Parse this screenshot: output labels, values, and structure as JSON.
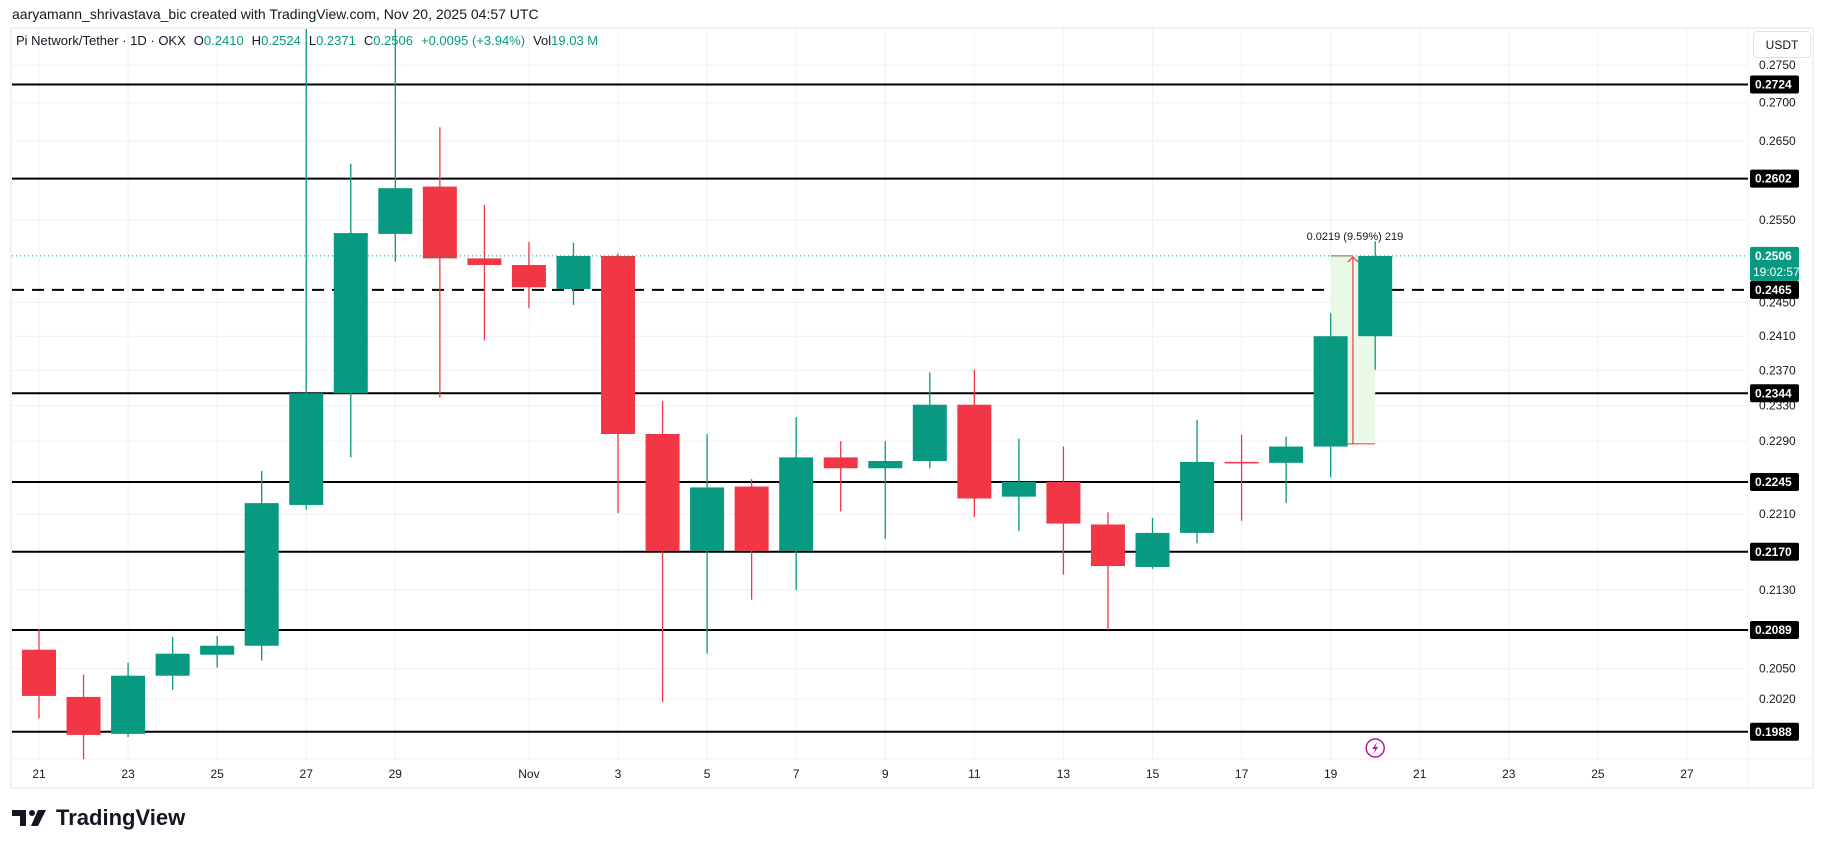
{
  "header": {
    "attribution": "aaryamann_shrivastava_bic created with TradingView.com, Nov 20, 2025 04:57 UTC"
  },
  "legend": {
    "symbol": "Pi Network/Tether · 1D · OKX",
    "open_label": "O",
    "open": "0.2410",
    "high_label": "H",
    "high": "0.2524",
    "low_label": "L",
    "low": "0.2371",
    "close_label": "C",
    "close": "0.2506",
    "change": "+0.0095 (+3.94%)",
    "vol_label": "Vol",
    "vol": "19.03 M"
  },
  "currency_button": "USDT",
  "logo_text": "TradingView",
  "colors": {
    "up": "#089981",
    "down": "#F23645",
    "level": "#000000",
    "measure_fill": "#e9f9e6",
    "measure_line": "#F23645",
    "grid": "#f0f1f3"
  },
  "chart_data": {
    "type": "candlestick",
    "title": "Pi Network/Tether · 1D · OKX",
    "y_scale": "log",
    "ylim": [
      0.1935,
      0.2845
    ],
    "xlim": [
      "2025-10-20",
      "2025-11-28"
    ],
    "grid": true,
    "y_ticks": [
      "0.2750",
      "0.2700",
      "0.2650",
      "0.2550",
      "0.2450",
      "0.2410",
      "0.2370",
      "0.2330",
      "0.2290",
      "0.2210",
      "0.2130",
      "0.2050",
      "0.2020"
    ],
    "x_ticks": [
      {
        "date": "2025-10-21",
        "label": "21"
      },
      {
        "date": "2025-10-23",
        "label": "23"
      },
      {
        "date": "2025-10-25",
        "label": "25"
      },
      {
        "date": "2025-10-27",
        "label": "27"
      },
      {
        "date": "2025-10-29",
        "label": "29"
      },
      {
        "date": "2025-11-01",
        "label": "Nov"
      },
      {
        "date": "2025-11-03",
        "label": "3"
      },
      {
        "date": "2025-11-05",
        "label": "5"
      },
      {
        "date": "2025-11-07",
        "label": "7"
      },
      {
        "date": "2025-11-09",
        "label": "9"
      },
      {
        "date": "2025-11-11",
        "label": "11"
      },
      {
        "date": "2025-11-13",
        "label": "13"
      },
      {
        "date": "2025-11-15",
        "label": "15"
      },
      {
        "date": "2025-11-17",
        "label": "17"
      },
      {
        "date": "2025-11-19",
        "label": "19"
      },
      {
        "date": "2025-11-21",
        "label": "21"
      },
      {
        "date": "2025-11-23",
        "label": "23"
      },
      {
        "date": "2025-11-25",
        "label": "25"
      },
      {
        "date": "2025-11-27",
        "label": "27"
      }
    ],
    "candles": [
      {
        "date": "2025-10-21",
        "o": 0.2069,
        "h": 0.209,
        "l": 0.2001,
        "c": 0.2023
      },
      {
        "date": "2025-10-22",
        "o": 0.2022,
        "h": 0.2044,
        "l": 0.1959,
        "c": 0.1985
      },
      {
        "date": "2025-10-23",
        "o": 0.1986,
        "h": 0.2056,
        "l": 0.1983,
        "c": 0.2043
      },
      {
        "date": "2025-10-24",
        "o": 0.2043,
        "h": 0.2082,
        "l": 0.2029,
        "c": 0.2065
      },
      {
        "date": "2025-10-25",
        "o": 0.2064,
        "h": 0.2083,
        "l": 0.2051,
        "c": 0.2073
      },
      {
        "date": "2025-10-26",
        "o": 0.2073,
        "h": 0.2257,
        "l": 0.2058,
        "c": 0.2222
      },
      {
        "date": "2025-10-27",
        "o": 0.222,
        "h": 0.285,
        "l": 0.2215,
        "c": 0.2344
      },
      {
        "date": "2025-10-28",
        "o": 0.2344,
        "h": 0.2621,
        "l": 0.2272,
        "c": 0.2534
      },
      {
        "date": "2025-10-29",
        "o": 0.2533,
        "h": 0.284,
        "l": 0.2499,
        "c": 0.259
      },
      {
        "date": "2025-10-30",
        "o": 0.2592,
        "h": 0.2668,
        "l": 0.2339,
        "c": 0.2503
      },
      {
        "date": "2025-10-31",
        "o": 0.2503,
        "h": 0.2569,
        "l": 0.2405,
        "c": 0.2495
      },
      {
        "date": "2025-11-01",
        "o": 0.2495,
        "h": 0.2523,
        "l": 0.2443,
        "c": 0.2468
      },
      {
        "date": "2025-11-02",
        "o": 0.2466,
        "h": 0.2522,
        "l": 0.2447,
        "c": 0.2506
      },
      {
        "date": "2025-11-03",
        "o": 0.2506,
        "h": 0.2509,
        "l": 0.2211,
        "c": 0.2298
      },
      {
        "date": "2025-11-04",
        "o": 0.2298,
        "h": 0.2335,
        "l": 0.2017,
        "c": 0.2171
      },
      {
        "date": "2025-11-05",
        "o": 0.2171,
        "h": 0.2298,
        "l": 0.2065,
        "c": 0.2239
      },
      {
        "date": "2025-11-06",
        "o": 0.224,
        "h": 0.2248,
        "l": 0.212,
        "c": 0.2171
      },
      {
        "date": "2025-11-07",
        "o": 0.2171,
        "h": 0.2317,
        "l": 0.213,
        "c": 0.2272
      },
      {
        "date": "2025-11-08",
        "o": 0.2272,
        "h": 0.229,
        "l": 0.2213,
        "c": 0.226
      },
      {
        "date": "2025-11-09",
        "o": 0.226,
        "h": 0.229,
        "l": 0.2184,
        "c": 0.2268
      },
      {
        "date": "2025-11-10",
        "o": 0.2268,
        "h": 0.2368,
        "l": 0.226,
        "c": 0.2331
      },
      {
        "date": "2025-11-11",
        "o": 0.2331,
        "h": 0.2371,
        "l": 0.2207,
        "c": 0.2227
      },
      {
        "date": "2025-11-12",
        "o": 0.2229,
        "h": 0.2293,
        "l": 0.2192,
        "c": 0.2245
      },
      {
        "date": "2025-11-13",
        "o": 0.2245,
        "h": 0.2284,
        "l": 0.2146,
        "c": 0.22
      },
      {
        "date": "2025-11-14",
        "o": 0.2199,
        "h": 0.2212,
        "l": 0.2089,
        "c": 0.2155
      },
      {
        "date": "2025-11-15",
        "o": 0.2154,
        "h": 0.2206,
        "l": 0.2152,
        "c": 0.219
      },
      {
        "date": "2025-11-16",
        "o": 0.219,
        "h": 0.2314,
        "l": 0.2179,
        "c": 0.2267
      },
      {
        "date": "2025-11-17",
        "o": 0.2267,
        "h": 0.2297,
        "l": 0.2203,
        "c": 0.2266
      },
      {
        "date": "2025-11-18",
        "o": 0.2266,
        "h": 0.2295,
        "l": 0.2222,
        "c": 0.2284
      },
      {
        "date": "2025-11-19",
        "o": 0.2284,
        "h": 0.2437,
        "l": 0.225,
        "c": 0.241
      },
      {
        "date": "2025-11-20",
        "o": 0.241,
        "h": 0.2524,
        "l": 0.2371,
        "c": 0.2506
      }
    ],
    "levels": [
      {
        "price": 0.2724,
        "label": "0.2724",
        "style": "solid"
      },
      {
        "price": 0.2602,
        "label": "0.2602",
        "style": "solid"
      },
      {
        "price": 0.2465,
        "label": "0.2465",
        "style": "dashed"
      },
      {
        "price": 0.2344,
        "label": "0.2344",
        "style": "solid"
      },
      {
        "price": 0.2245,
        "label": "0.2245",
        "style": "solid"
      },
      {
        "price": 0.217,
        "label": "0.2170",
        "style": "solid"
      },
      {
        "price": 0.2089,
        "label": "0.2089",
        "style": "solid"
      },
      {
        "price": 0.1988,
        "label": "0.1988",
        "style": "solid"
      }
    ],
    "last_price": {
      "price": 0.2506,
      "label": "0.2506",
      "countdown": "19:02:57"
    },
    "measure": {
      "from_date": "2025-11-19",
      "to_date": "2025-11-20",
      "from_price": 0.2287,
      "to_price": 0.2506,
      "label": "0.0219 (9.59%) 219"
    },
    "marker": {
      "date": "2025-11-20",
      "icon": "lightning-icon"
    }
  }
}
